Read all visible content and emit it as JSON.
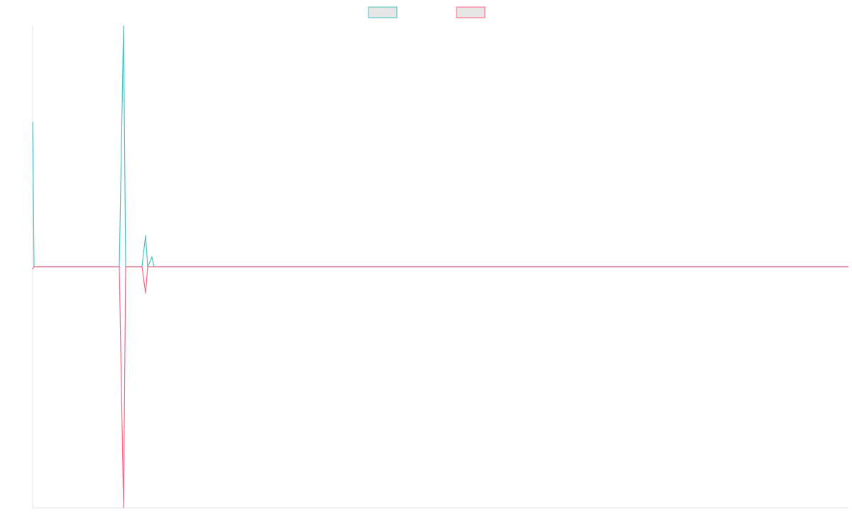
{
  "chart_data": {
    "type": "line",
    "legend": "top",
    "x": [
      0,
      2,
      122,
      128,
      131,
      154,
      159,
      162,
      168,
      171,
      1149
    ],
    "xlim": [
      0,
      1149
    ],
    "ylim": [
      -1,
      1
    ],
    "series": [
      {
        "color": "#4bc0c0",
        "values": [
          0.6,
          0,
          0,
          1,
          0,
          0,
          0.13,
          0,
          0.04,
          0,
          0
        ]
      },
      {
        "color": "#ff6384",
        "values": [
          -0.01,
          0,
          0,
          -1,
          0,
          0,
          -0.11,
          0,
          0,
          0,
          0
        ]
      }
    ]
  }
}
